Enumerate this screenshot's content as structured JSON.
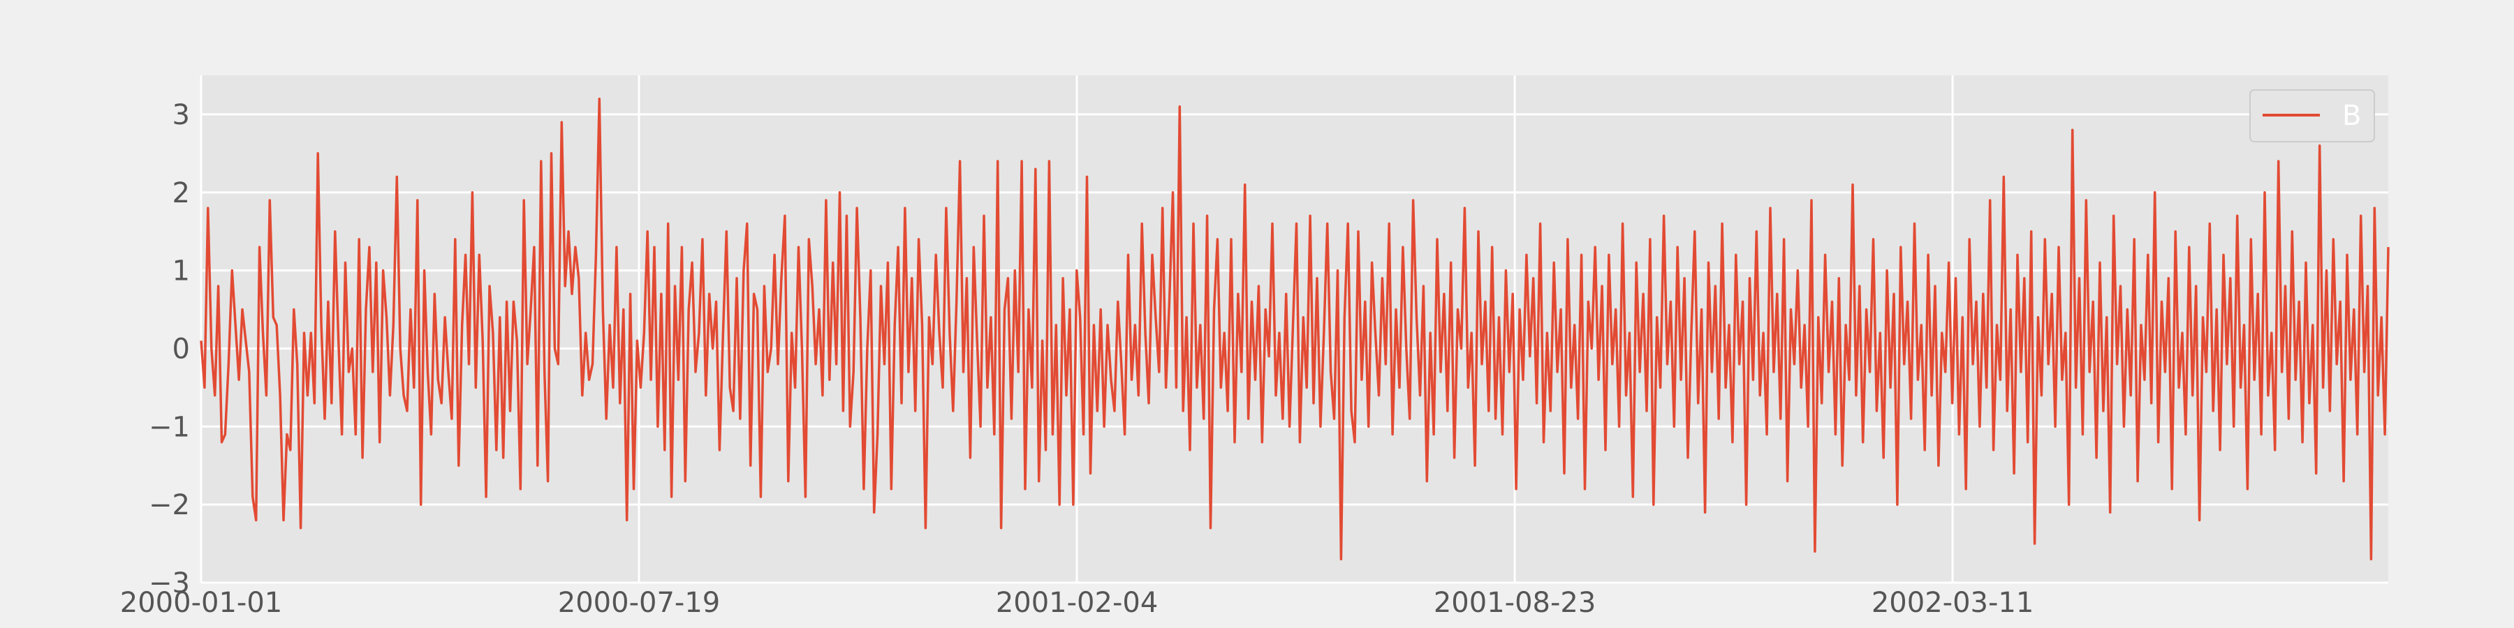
{
  "chart_data": {
    "type": "line",
    "title": "",
    "xlabel": "",
    "ylabel": "",
    "x_start": "2000-01-01",
    "x_end": "2002-09-26",
    "x_frequency": "daily",
    "x_ticks": [
      "2000-01-01",
      "2000-07-19",
      "2001-02-04",
      "2001-08-23",
      "2002-03-11"
    ],
    "y_ticks": [
      -3,
      -2,
      -1,
      0,
      1,
      2,
      3
    ],
    "ylim": [
      -3,
      3.5
    ],
    "grid": true,
    "legend_position": "top-right",
    "colors": {
      "background": "#f0f0f0",
      "plot_background": "#e5e5e5",
      "grid": "#ffffff",
      "series": "#e24a33"
    },
    "series": [
      {
        "name": "B",
        "color": "#e24a33",
        "values_sampled_every_3_days": [
          0.1,
          -0.5,
          1.8,
          0.0,
          -0.6,
          0.8,
          -1.2,
          -1.1,
          -0.2,
          1.0,
          0.3,
          -0.4,
          0.5,
          0.1,
          -0.3,
          -1.9,
          -2.2,
          1.3,
          0.2,
          -0.6,
          1.9,
          0.4,
          0.3,
          -0.6,
          -2.2,
          -1.1,
          -1.3,
          0.5,
          -0.2,
          -2.3,
          0.2,
          -0.6,
          0.2,
          -0.7,
          2.5,
          0.3,
          -0.9,
          0.6,
          -0.7,
          1.5,
          0.1,
          -1.1,
          1.1,
          -0.3,
          0.0,
          -1.1,
          1.4,
          -1.4,
          0.5,
          1.3,
          -0.3,
          1.1,
          -1.2,
          1.0,
          0.4,
          -0.6,
          0.3,
          2.2,
          0.0,
          -0.6,
          -0.8,
          0.5,
          -0.5,
          1.9,
          -2.0,
          1.0,
          -0.3,
          -1.1,
          0.7,
          -0.4,
          -0.7,
          0.4,
          -0.3,
          -0.9,
          1.4,
          -1.5,
          0.3,
          1.2,
          -0.2,
          2.0,
          -0.5,
          1.2,
          0.1,
          -1.9,
          0.8,
          0.2,
          -1.3,
          0.4,
          -1.4,
          0.6,
          -0.8,
          0.6,
          0.1,
          -1.8,
          1.9,
          -0.2,
          0.5,
          1.3,
          -1.5,
          2.4,
          -0.3,
          -1.7,
          2.5,
          0.0,
          -0.2,
          2.9,
          0.8,
          1.5,
          0.7,
          1.3,
          0.9,
          -0.6,
          0.2,
          -0.4,
          -0.2,
          1.2,
          3.2,
          0.5,
          -0.9,
          0.3,
          -0.5,
          1.3,
          -0.7,
          0.5,
          -2.2,
          0.7,
          -1.8,
          0.1,
          -0.5,
          0.2,
          1.5,
          -0.4,
          1.3,
          -1.0,
          0.7,
          -1.3,
          1.6,
          -1.9,
          0.8,
          -0.4,
          1.3,
          -1.7,
          0.5,
          1.1,
          -0.3,
          0.2,
          1.4,
          -0.6,
          0.7,
          0.0,
          0.6,
          -1.3,
          0.2,
          1.5,
          -0.5,
          -0.8,
          0.9,
          -0.9,
          1.0,
          1.6,
          -1.5,
          0.7,
          0.5,
          -1.9,
          0.8,
          -0.3,
          0.0,
          1.2,
          -0.2,
          0.9,
          1.7,
          -1.7,
          0.2,
          -0.5,
          1.3,
          0.0,
          -1.9,
          1.4,
          0.8,
          -0.2,
          0.5,
          -0.6,
          1.9,
          -0.4,
          1.1,
          -0.2,
          2.0,
          -0.8,
          1.7,
          -1.0,
          -0.3,
          1.8,
          0.4,
          -1.8,
          0.0,
          1.0,
          -2.1,
          -1.1,
          0.8,
          -0.2,
          1.1,
          -1.8,
          0.3,
          1.3,
          -0.7,
          1.8,
          -0.3,
          0.9,
          -0.8,
          1.4,
          0.3,
          -2.3,
          0.4,
          -0.2,
          1.2,
          0.2,
          -0.5,
          1.8,
          0.2,
          -0.8,
          0.6,
          2.4,
          -0.3,
          0.9,
          -1.4,
          1.3,
          0.1,
          -1.0,
          1.7,
          -0.5,
          0.4,
          -1.1,
          2.4,
          -2.3,
          0.5,
          0.9,
          -0.9,
          1.0,
          -0.3,
          2.4,
          -1.8,
          0.5,
          -0.5,
          2.3,
          -1.7,
          0.1,
          -1.3,
          2.4,
          -1.1,
          0.3,
          -2.0,
          0.9,
          -0.6,
          0.5,
          -2.0,
          1.0,
          0.4,
          -1.1,
          2.2,
          -1.6,
          0.3,
          -0.8,
          0.5,
          -1.0,
          0.3,
          -0.4,
          -0.8,
          0.6,
          -0.2,
          -1.1,
          1.2,
          -0.4,
          0.3,
          -0.6,
          1.6,
          0.2,
          -0.7,
          1.2,
          0.4,
          -0.3,
          1.8,
          -0.5,
          0.6,
          2.0,
          -0.5,
          3.1,
          -0.8,
          0.4,
          -1.3,
          1.6,
          -0.5,
          0.3,
          -0.9,
          1.7,
          -2.3,
          0.5,
          1.4,
          -0.5,
          0.2,
          -0.8,
          1.4,
          -1.2,
          0.7,
          -0.3,
          2.1,
          -0.9,
          0.6,
          -0.4,
          0.8,
          -1.2,
          0.5,
          -0.1,
          1.6,
          -0.6,
          0.2,
          -0.9,
          0.7,
          -1.0,
          0.3,
          1.6,
          -1.2,
          0.4,
          -0.5,
          1.7,
          -0.7,
          0.9,
          -1.0,
          0.2,
          1.6,
          -0.3,
          -0.9,
          1.0,
          -2.7,
          0.4,
          1.6,
          -0.8,
          -1.2,
          1.5,
          -0.4,
          0.6,
          -1.0,
          1.1,
          0.2,
          -0.6,
          0.9,
          -0.2,
          1.6,
          -1.1,
          0.5,
          -0.5,
          1.3,
          0.0,
          -0.9,
          1.9,
          0.4,
          -0.6,
          0.8,
          -1.7,
          0.2,
          -1.1,
          1.4,
          -0.3,
          0.7,
          -0.8,
          1.1,
          -1.4,
          0.5,
          0.0,
          1.8,
          -0.5,
          0.2,
          -1.5,
          1.5,
          -0.2,
          0.6,
          -0.8,
          1.3,
          -0.9,
          0.4,
          -1.1,
          1.0,
          -0.3,
          0.7,
          -1.8,
          0.5,
          -0.4,
          1.2,
          -0.1,
          0.9,
          -0.7,
          1.6,
          -1.2,
          0.2,
          -0.8,
          1.1,
          -0.3,
          0.5,
          -1.6,
          1.4,
          -0.5,
          0.3,
          -0.9,
          1.2,
          -1.8,
          0.6,
          0.0,
          1.3,
          -0.4,
          0.8,
          -1.3,
          1.2,
          -0.2,
          0.5,
          -1.0,
          1.6,
          -0.6,
          0.2,
          -1.9,
          1.1,
          -0.3,
          0.7,
          -0.8,
          1.4,
          -2.0,
          0.4,
          -0.5,
          1.7,
          -0.2,
          0.6,
          -1.0,
          1.3,
          -0.4,
          0.9,
          -1.4,
          0.2,
          1.5,
          -0.7,
          0.5,
          -2.1,
          1.1,
          -0.3,
          0.8,
          -0.9,
          1.6,
          -0.5,
          0.3,
          -1.2,
          1.2,
          -0.2,
          0.6,
          -2.0,
          0.9,
          -0.4,
          1.5,
          -0.6,
          0.2,
          -1.1,
          1.8,
          -0.3,
          0.7,
          -0.9,
          1.4,
          -1.7,
          0.5,
          -0.2,
          1.0,
          -0.5,
          0.3,
          -1.0,
          1.9,
          -2.6,
          0.4,
          -0.7,
          1.2,
          -0.3,
          0.6,
          -1.1,
          0.9,
          -1.5,
          0.3,
          -0.4,
          2.1,
          -0.6,
          0.8,
          -1.2,
          0.5,
          -0.3,
          1.4,
          -0.8,
          0.2,
          -1.4,
          1.0,
          -0.5,
          0.7,
          -2.0,
          1.3,
          -0.2,
          0.6,
          -0.9,
          1.6,
          -0.4,
          0.3,
          -1.3,
          1.2,
          -0.6,
          0.8,
          -1.5,
          0.2,
          -0.3,
          1.1,
          -0.7,
          0.9,
          -1.1,
          0.4,
          -1.8,
          1.4,
          -0.2,
          0.6,
          -1.0,
          0.7,
          -0.5,
          1.9,
          -1.3,
          0.3,
          -0.4,
          2.2,
          -0.8,
          0.5,
          -1.6,
          1.2,
          -0.3,
          0.9,
          -1.2,
          1.5,
          -2.5,
          0.4,
          -0.6,
          1.4,
          -0.2,
          0.7,
          -1.0,
          1.3,
          -0.4,
          0.2,
          -2.0,
          2.8,
          -0.5,
          0.9,
          -1.1,
          1.9,
          -0.3,
          0.6,
          -1.4,
          1.1,
          -0.8,
          0.4,
          -2.1,
          1.7,
          -0.2,
          0.8,
          -1.0,
          0.5,
          -0.6,
          1.4,
          -1.7,
          0.3,
          -0.4,
          1.2,
          -0.7,
          2.0,
          -1.2,
          0.6,
          -0.3,
          0.9,
          -1.8,
          1.5,
          -0.5,
          0.2,
          -1.1,
          1.3,
          -0.6,
          0.8,
          -2.2,
          0.4,
          -0.3,
          1.6,
          -0.8,
          0.5,
          -1.3,
          1.2,
          -0.2,
          0.9,
          -1.0,
          1.7,
          -0.5,
          0.3,
          -1.8,
          1.4,
          -0.4,
          0.7,
          -1.1,
          2.0,
          -0.6,
          0.2,
          -1.3,
          2.4,
          -0.3,
          0.8,
          -0.9,
          1.5,
          -0.4,
          0.6,
          -1.2,
          1.1,
          -0.7,
          0.3,
          -1.6,
          2.6,
          -0.5,
          1.0,
          -0.8,
          1.4,
          -0.2,
          0.6,
          -1.7,
          1.2,
          -0.4,
          0.5,
          -1.1,
          1.7,
          -0.3,
          0.8,
          -2.7,
          1.8,
          -0.6,
          0.4,
          -1.1,
          1.3
        ]
      }
    ]
  }
}
